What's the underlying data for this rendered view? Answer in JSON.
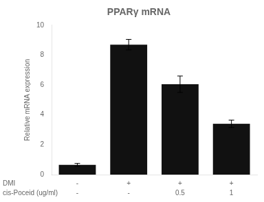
{
  "chart_data": {
    "type": "bar",
    "title": "PPARγ mRNA",
    "ylabel": "Relative mRNA expression",
    "categories": [
      null,
      null,
      null,
      null
    ],
    "values": [
      0.65,
      8.7,
      6.05,
      3.4
    ],
    "errors": [
      0.1,
      0.35,
      0.55,
      0.25
    ],
    "color": "#111111",
    "ylim": [
      0,
      10
    ],
    "yticks": [
      0,
      2,
      4,
      6,
      8,
      10
    ],
    "grid": false,
    "rows": [
      {
        "name": "DMI",
        "labels": [
          "-",
          "+",
          "+",
          "+"
        ]
      },
      {
        "name": "cis-Poceid (ug/ml)",
        "labels": [
          "-",
          "-",
          "0.5",
          "1"
        ]
      }
    ]
  }
}
